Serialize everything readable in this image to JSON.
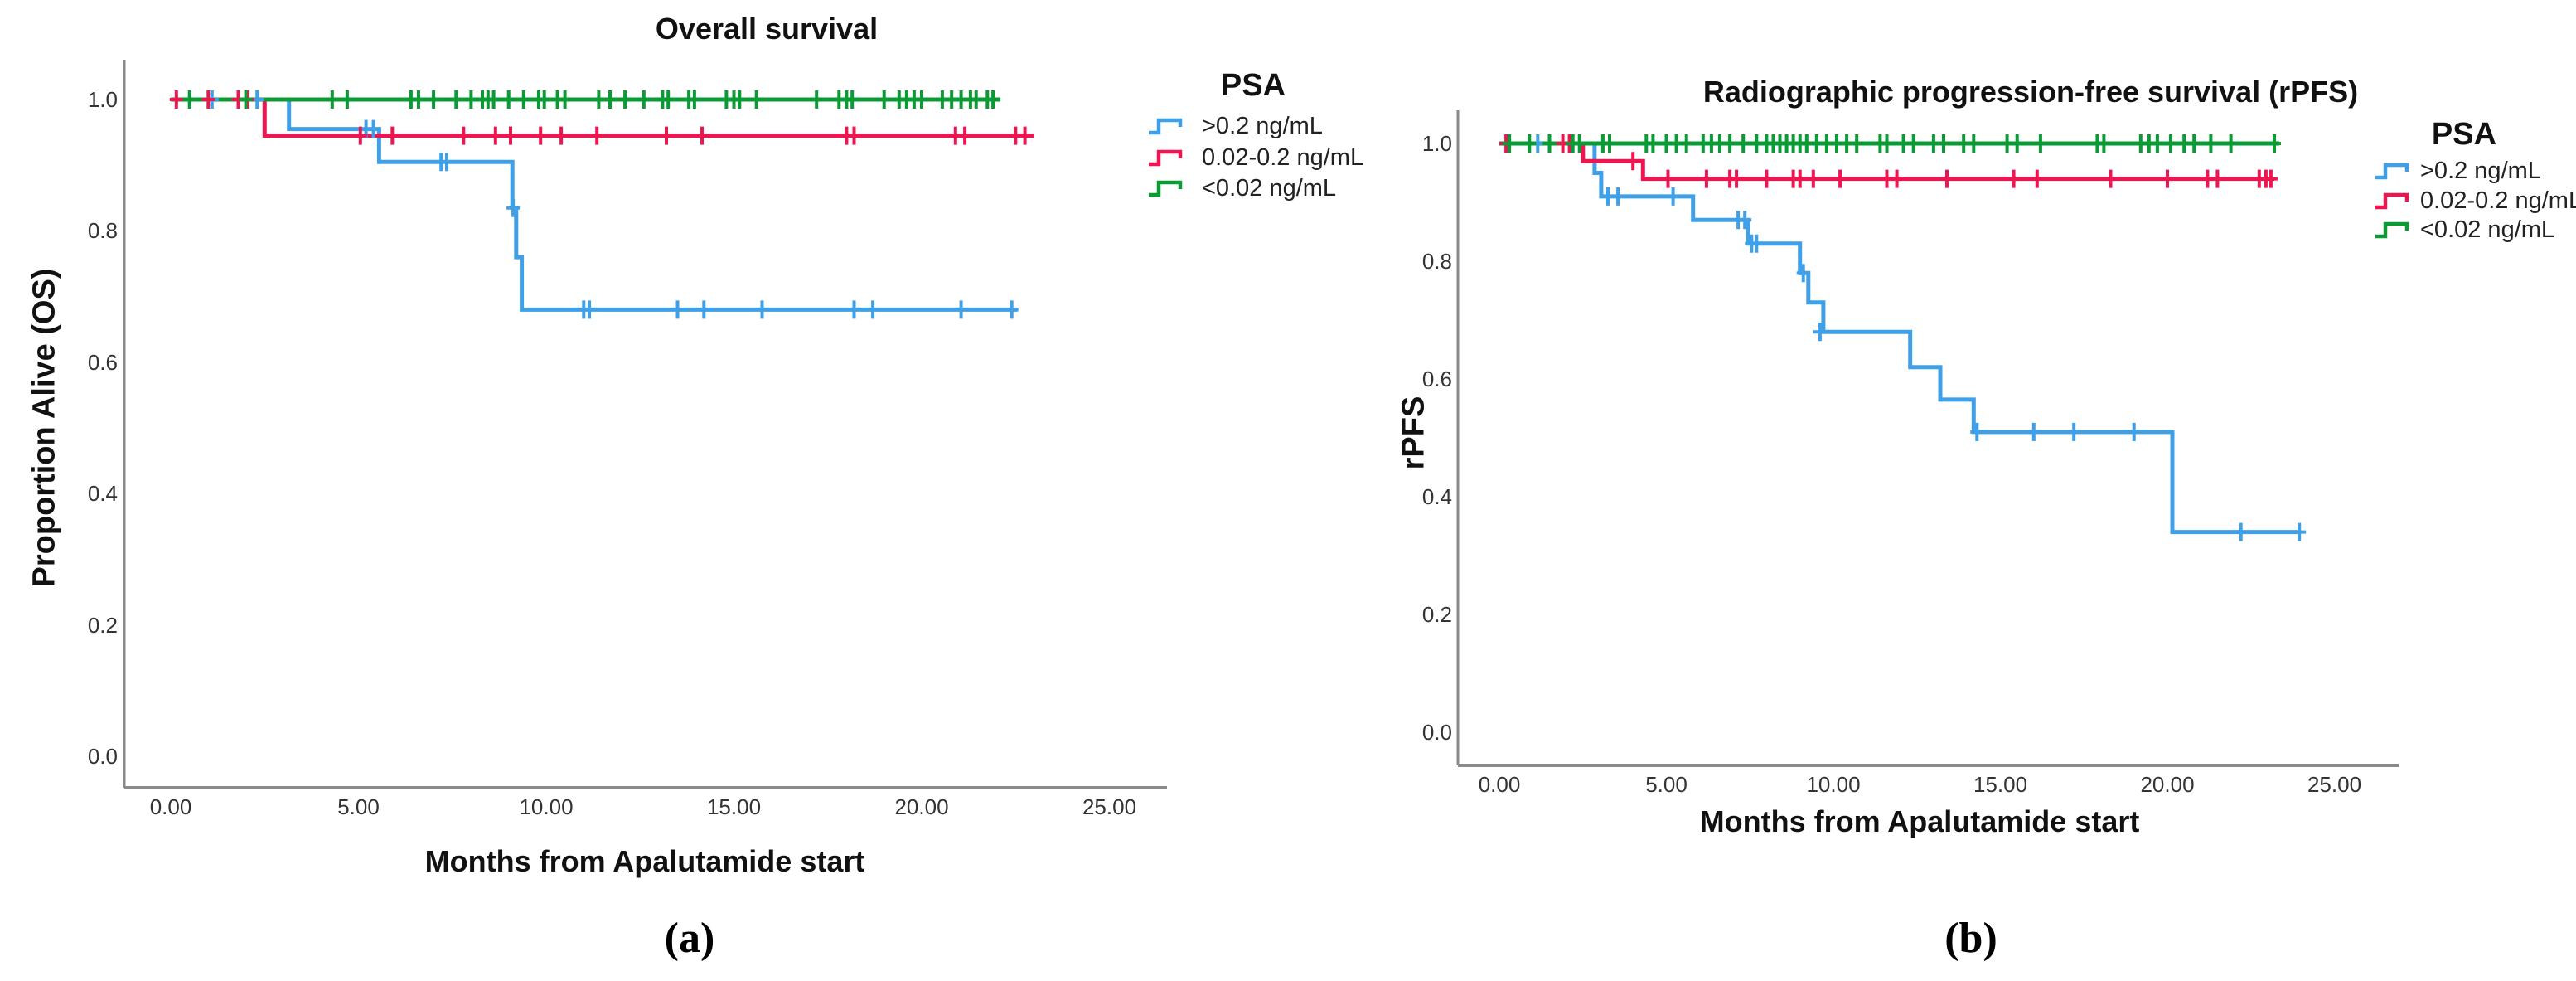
{
  "figure": {
    "panel_a_label": "(a)",
    "panel_b_label": "(b)",
    "colors": {
      "blue": "#3FA0E8",
      "red": "#EC1650",
      "green": "#0A9B34",
      "axis": "#8a8a8a",
      "text": "#111111"
    }
  },
  "chart_data": [
    {
      "type": "line",
      "subtype": "kaplan_meier_step",
      "title": "Overall survival",
      "xlabel": "Months from Apalutamide start",
      "ylabel": "Proportion Alive (OS)",
      "legend_title": "PSA",
      "legend_position": "right",
      "grid": false,
      "xlim": [
        0,
        25
      ],
      "ylim": [
        0,
        1
      ],
      "xticks": [
        {
          "v": 0,
          "label": "0.00"
        },
        {
          "v": 5,
          "label": "5.00"
        },
        {
          "v": 10,
          "label": "10.00"
        },
        {
          "v": 15,
          "label": "15.00"
        },
        {
          "v": 20,
          "label": "20.00"
        },
        {
          "v": 25,
          "label": "25.00"
        }
      ],
      "yticks": [
        {
          "v": 0.0,
          "label": "0.0"
        },
        {
          "v": 0.2,
          "label": "0.2"
        },
        {
          "v": 0.4,
          "label": "0.4"
        },
        {
          "v": 0.6,
          "label": "0.6"
        },
        {
          "v": 0.8,
          "label": "0.8"
        },
        {
          "v": 1.0,
          "label": "1.0"
        }
      ],
      "series": [
        {
          "name": ">0.2 ng/mL",
          "color": "blue",
          "steps": [
            [
              0,
              1.0
            ],
            [
              3.15,
              0.955
            ],
            [
              5.55,
              0.905
            ],
            [
              9.1,
              0.835
            ],
            [
              9.2,
              0.76
            ],
            [
              9.35,
              0.68
            ]
          ],
          "end": 22.55,
          "censors": [
            [
              1.1,
              1.0
            ],
            [
              2.3,
              1.0
            ],
            [
              5.2,
              0.955
            ],
            [
              5.4,
              0.955
            ],
            [
              7.2,
              0.905
            ],
            [
              7.35,
              0.905
            ],
            [
              9.12,
              0.835
            ],
            [
              11.0,
              0.68
            ],
            [
              11.15,
              0.68
            ],
            [
              13.5,
              0.68
            ],
            [
              14.2,
              0.68
            ],
            [
              15.75,
              0.68
            ],
            [
              18.2,
              0.68
            ],
            [
              18.7,
              0.68
            ],
            [
              21.05,
              0.68
            ],
            [
              22.4,
              0.68
            ]
          ]
        },
        {
          "name": "0.02-0.2 ng/mL",
          "color": "red",
          "steps": [
            [
              0,
              1.0
            ],
            [
              2.5,
              0.945
            ]
          ],
          "end": 23.0,
          "censors": [
            [
              0.15,
              1.0
            ],
            [
              1.0,
              1.0
            ],
            [
              1.8,
              1.0
            ],
            [
              2.05,
              1.0
            ],
            [
              5.05,
              0.945
            ],
            [
              5.9,
              0.945
            ],
            [
              7.8,
              0.945
            ],
            [
              8.65,
              0.945
            ],
            [
              9.05,
              0.945
            ],
            [
              9.85,
              0.945
            ],
            [
              10.4,
              0.945
            ],
            [
              11.35,
              0.945
            ],
            [
              13.2,
              0.945
            ],
            [
              14.15,
              0.945
            ],
            [
              18.0,
              0.945
            ],
            [
              18.2,
              0.945
            ],
            [
              20.9,
              0.945
            ],
            [
              21.15,
              0.945
            ],
            [
              22.5,
              0.945
            ],
            [
              22.75,
              0.945
            ]
          ]
        },
        {
          "name": "<0.02 ng/mL",
          "color": "green",
          "steps": [
            [
              0,
              1.0
            ]
          ],
          "end": 22.1,
          "censors": [
            [
              0.5,
              1.0
            ],
            [
              2.0,
              1.0
            ],
            [
              4.3,
              1.0
            ],
            [
              4.7,
              1.0
            ],
            [
              6.4,
              1.0
            ],
            [
              6.6,
              1.0
            ],
            [
              7.0,
              1.0
            ],
            [
              7.6,
              1.0
            ],
            [
              8.0,
              1.0
            ],
            [
              8.3,
              1.0
            ],
            [
              8.45,
              1.0
            ],
            [
              8.6,
              1.0
            ],
            [
              9.0,
              1.0
            ],
            [
              9.4,
              1.0
            ],
            [
              9.8,
              1.0
            ],
            [
              9.95,
              1.0
            ],
            [
              10.3,
              1.0
            ],
            [
              10.5,
              1.0
            ],
            [
              11.4,
              1.0
            ],
            [
              11.7,
              1.0
            ],
            [
              12.1,
              1.0
            ],
            [
              12.6,
              1.0
            ],
            [
              13.1,
              1.0
            ],
            [
              13.25,
              1.0
            ],
            [
              13.8,
              1.0
            ],
            [
              13.95,
              1.0
            ],
            [
              14.8,
              1.0
            ],
            [
              15.0,
              1.0
            ],
            [
              15.15,
              1.0
            ],
            [
              15.6,
              1.0
            ],
            [
              17.2,
              1.0
            ],
            [
              17.8,
              1.0
            ],
            [
              18.0,
              1.0
            ],
            [
              18.15,
              1.0
            ],
            [
              19.0,
              1.0
            ],
            [
              19.4,
              1.0
            ],
            [
              19.6,
              1.0
            ],
            [
              19.8,
              1.0
            ],
            [
              20.0,
              1.0
            ],
            [
              20.55,
              1.0
            ],
            [
              20.8,
              1.0
            ],
            [
              21.05,
              1.0
            ],
            [
              21.3,
              1.0
            ],
            [
              21.45,
              1.0
            ],
            [
              21.75,
              1.0
            ],
            [
              21.9,
              1.0
            ]
          ]
        }
      ]
    },
    {
      "type": "line",
      "subtype": "kaplan_meier_step",
      "title": "Radiographic progression-free survival (rPFS)",
      "xlabel": "Months from Apalutamide start",
      "ylabel": "rPFS",
      "legend_title": "PSA",
      "legend_position": "right",
      "grid": false,
      "xlim": [
        0,
        25
      ],
      "ylim": [
        0,
        1
      ],
      "xticks": [
        {
          "v": 0,
          "label": "0.00"
        },
        {
          "v": 5,
          "label": "5.00"
        },
        {
          "v": 10,
          "label": "10.00"
        },
        {
          "v": 15,
          "label": "15.00"
        },
        {
          "v": 20,
          "label": "20.00"
        },
        {
          "v": 25,
          "label": "25.00"
        }
      ],
      "yticks": [
        {
          "v": 0.0,
          "label": "0.0"
        },
        {
          "v": 0.2,
          "label": "0.2"
        },
        {
          "v": 0.4,
          "label": "0.4"
        },
        {
          "v": 0.6,
          "label": "0.6"
        },
        {
          "v": 0.8,
          "label": "0.8"
        },
        {
          "v": 1.0,
          "label": "1.0"
        }
      ],
      "series": [
        {
          "name": ">0.2 ng/mL",
          "color": "blue",
          "steps": [
            [
              0,
              1.0
            ],
            [
              2.85,
              0.95
            ],
            [
              3.05,
              0.91
            ],
            [
              5.8,
              0.87
            ],
            [
              7.45,
              0.83
            ],
            [
              9.0,
              0.78
            ],
            [
              9.25,
              0.73
            ],
            [
              9.7,
              0.68
            ],
            [
              12.3,
              0.62
            ],
            [
              13.2,
              0.565
            ],
            [
              14.2,
              0.51
            ],
            [
              20.15,
              0.34
            ]
          ],
          "end": 24.0,
          "censors": [
            [
              1.15,
              1.0
            ],
            [
              3.25,
              0.91
            ],
            [
              3.55,
              0.91
            ],
            [
              5.2,
              0.91
            ],
            [
              7.15,
              0.87
            ],
            [
              7.35,
              0.87
            ],
            [
              7.55,
              0.83
            ],
            [
              7.7,
              0.83
            ],
            [
              9.1,
              0.78
            ],
            [
              9.6,
              0.68
            ],
            [
              14.3,
              0.51
            ],
            [
              16.0,
              0.51
            ],
            [
              17.2,
              0.51
            ],
            [
              19.0,
              0.51
            ],
            [
              22.2,
              0.34
            ],
            [
              23.95,
              0.34
            ]
          ]
        },
        {
          "name": "0.02-0.2 ng/mL",
          "color": "red",
          "steps": [
            [
              0,
              1.0
            ],
            [
              2.5,
              0.97
            ],
            [
              4.3,
              0.94
            ]
          ],
          "end": 23.2,
          "censors": [
            [
              0.2,
              1.0
            ],
            [
              1.9,
              1.0
            ],
            [
              2.1,
              1.0
            ],
            [
              4.0,
              0.97
            ],
            [
              5.05,
              0.94
            ],
            [
              6.2,
              0.94
            ],
            [
              6.9,
              0.94
            ],
            [
              7.1,
              0.94
            ],
            [
              8.0,
              0.94
            ],
            [
              8.8,
              0.94
            ],
            [
              9.0,
              0.94
            ],
            [
              9.4,
              0.94
            ],
            [
              10.2,
              0.94
            ],
            [
              11.6,
              0.94
            ],
            [
              11.9,
              0.94
            ],
            [
              13.4,
              0.94
            ],
            [
              15.4,
              0.94
            ],
            [
              16.1,
              0.94
            ],
            [
              18.3,
              0.94
            ],
            [
              20.0,
              0.94
            ],
            [
              21.2,
              0.94
            ],
            [
              21.5,
              0.94
            ],
            [
              22.75,
              0.94
            ],
            [
              22.95,
              0.94
            ],
            [
              23.1,
              0.94
            ]
          ]
        },
        {
          "name": "<0.02 ng/mL",
          "color": "green",
          "steps": [
            [
              0,
              1.0
            ]
          ],
          "end": 23.35,
          "censors": [
            [
              0.3,
              1.0
            ],
            [
              0.9,
              1.0
            ],
            [
              1.5,
              1.0
            ],
            [
              2.2,
              1.0
            ],
            [
              2.4,
              1.0
            ],
            [
              3.1,
              1.0
            ],
            [
              3.3,
              1.0
            ],
            [
              4.4,
              1.0
            ],
            [
              4.6,
              1.0
            ],
            [
              5.0,
              1.0
            ],
            [
              5.3,
              1.0
            ],
            [
              5.6,
              1.0
            ],
            [
              6.1,
              1.0
            ],
            [
              6.35,
              1.0
            ],
            [
              6.6,
              1.0
            ],
            [
              6.9,
              1.0
            ],
            [
              7.3,
              1.0
            ],
            [
              7.7,
              1.0
            ],
            [
              8.0,
              1.0
            ],
            [
              8.2,
              1.0
            ],
            [
              8.4,
              1.0
            ],
            [
              8.6,
              1.0
            ],
            [
              8.8,
              1.0
            ],
            [
              9.0,
              1.0
            ],
            [
              9.2,
              1.0
            ],
            [
              9.5,
              1.0
            ],
            [
              9.8,
              1.0
            ],
            [
              10.1,
              1.0
            ],
            [
              10.4,
              1.0
            ],
            [
              10.7,
              1.0
            ],
            [
              11.4,
              1.0
            ],
            [
              11.6,
              1.0
            ],
            [
              12.1,
              1.0
            ],
            [
              12.4,
              1.0
            ],
            [
              13.0,
              1.0
            ],
            [
              13.3,
              1.0
            ],
            [
              13.9,
              1.0
            ],
            [
              14.2,
              1.0
            ],
            [
              15.2,
              1.0
            ],
            [
              15.5,
              1.0
            ],
            [
              16.2,
              1.0
            ],
            [
              17.9,
              1.0
            ],
            [
              18.1,
              1.0
            ],
            [
              19.2,
              1.0
            ],
            [
              19.45,
              1.0
            ],
            [
              19.7,
              1.0
            ],
            [
              20.1,
              1.0
            ],
            [
              20.5,
              1.0
            ],
            [
              20.8,
              1.0
            ],
            [
              21.3,
              1.0
            ],
            [
              21.9,
              1.0
            ],
            [
              23.2,
              1.0
            ]
          ]
        }
      ]
    }
  ]
}
